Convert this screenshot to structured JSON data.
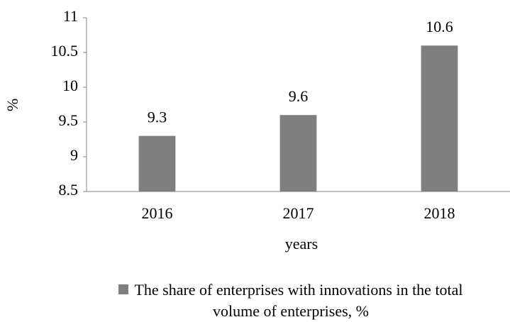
{
  "chart_data": {
    "type": "bar",
    "categories": [
      "2016",
      "2017",
      "2018"
    ],
    "series": [
      {
        "name": "The share of enterprises with innovations in the total volume of enterprises, %",
        "color": "#7f7f7f",
        "values": [
          9.3,
          9.6,
          10.6
        ]
      }
    ],
    "xlabel": "years",
    "ylabel": "%",
    "ylim": [
      8.5,
      11
    ],
    "yticks": [
      8.5,
      9,
      9.5,
      10,
      10.5,
      11
    ],
    "legend": "bottom"
  }
}
